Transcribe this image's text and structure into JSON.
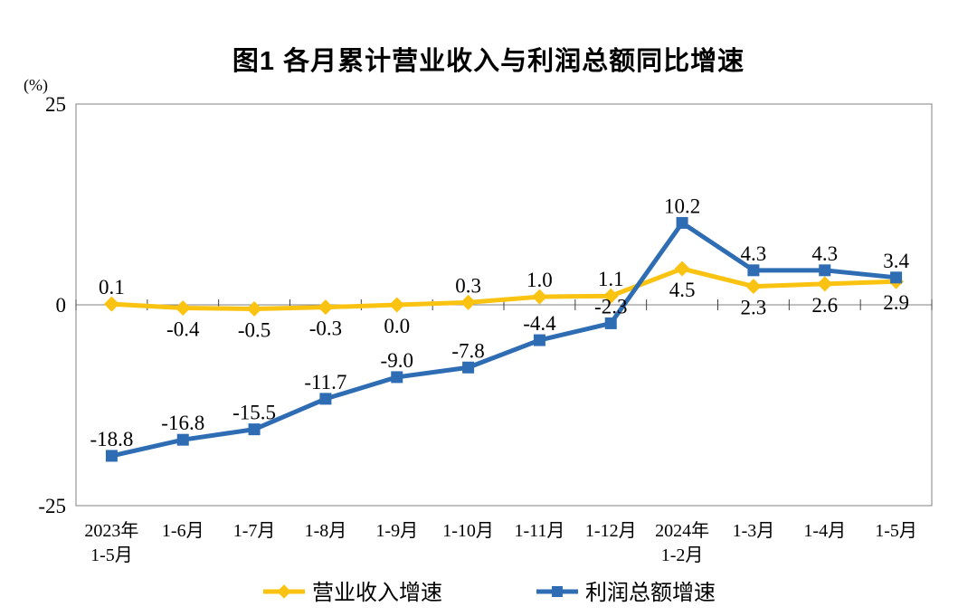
{
  "chart": {
    "title": "图1  各月累计营业收入与利润总额同比增速",
    "unit": "(%)"
  },
  "chart_data": {
    "type": "line",
    "categories": [
      "2023年\n1-5月",
      "1-6月",
      "1-7月",
      "1-8月",
      "1-9月",
      "1-10月",
      "1-11月",
      "1-12月",
      "2024年\n1-2月",
      "1-3月",
      "1-4月",
      "1-5月"
    ],
    "series": [
      {
        "name": "营业收入增速",
        "color": "#FBC311",
        "marker": "diamond",
        "values": [
          0.1,
          -0.4,
          -0.5,
          -0.3,
          0.0,
          0.3,
          1.0,
          1.1,
          4.5,
          2.3,
          2.6,
          2.9
        ],
        "labels": [
          "0.1",
          "-0.4",
          "-0.5",
          "-0.3",
          "0.0",
          "0.3",
          "1.0",
          "1.1",
          "4.5",
          "2.3",
          "2.6",
          "2.9"
        ],
        "label_position": [
          "above",
          "below",
          "below",
          "below",
          "below",
          "above",
          "above",
          "above",
          "below",
          "below",
          "below",
          "below"
        ]
      },
      {
        "name": "利润总额增速",
        "color": "#2E6DB4",
        "marker": "square",
        "values": [
          -18.8,
          -16.8,
          -15.5,
          -11.7,
          -9.0,
          -7.8,
          -4.4,
          -2.3,
          10.2,
          4.3,
          4.3,
          3.4
        ],
        "labels": [
          "-18.8",
          "-16.8",
          "-15.5",
          "-11.7",
          "-9.0",
          "-7.8",
          "-4.4",
          "-2.3",
          "10.2",
          "4.3",
          "4.3",
          "3.4"
        ],
        "label_position": [
          "above",
          "above",
          "above",
          "above",
          "above",
          "above",
          "above",
          "above",
          "above",
          "above",
          "above",
          "above"
        ]
      }
    ],
    "ylim": [
      -25,
      25
    ],
    "yticks": [
      25,
      0,
      -25
    ],
    "grid": false,
    "legend_position": "bottom",
    "axis_color": "#808080",
    "tick_color": "#404040"
  }
}
